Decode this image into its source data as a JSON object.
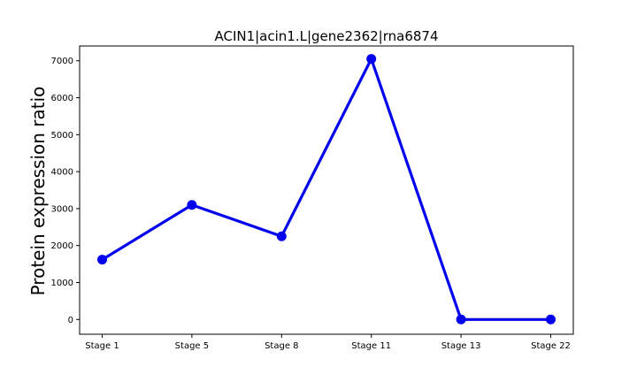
{
  "chart_data": {
    "type": "line",
    "title": "ACIN1|acin1.L|gene2362|rna6874",
    "xlabel": "",
    "ylabel": "Protein expression ratio",
    "categories": [
      "Stage 1",
      "Stage 5",
      "Stage 8",
      "Stage 11",
      "Stage 13",
      "Stage 22"
    ],
    "series": [
      {
        "values": [
          1620,
          3100,
          2250,
          7050,
          0,
          0
        ]
      }
    ],
    "ylim": [
      -400,
      7400
    ],
    "yticks": [
      "0",
      "1000",
      "2000",
      "3000",
      "4000",
      "5000",
      "6000",
      "7000"
    ],
    "grid": false,
    "legend": "none",
    "line_color": "#0000ee"
  }
}
